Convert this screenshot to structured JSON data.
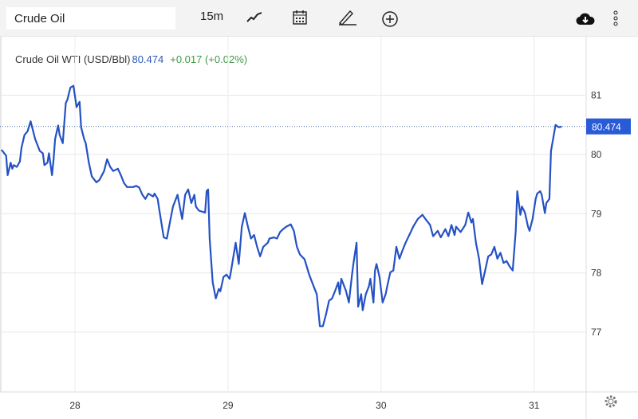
{
  "toolbar": {
    "symbol": "Crude Oil",
    "interval": "15m",
    "icons": [
      "line-chart-icon",
      "calendar-icon",
      "pencil-icon",
      "add-circle-icon",
      "cloud-download-icon",
      "more-vertical-icon"
    ]
  },
  "legend": {
    "name": "Crude Oil WTI (USD/Bbl)",
    "price": "80.474",
    "change": "+0.017 (+0.02%)"
  },
  "colors": {
    "line": "#2451c4",
    "label": "#2a5bd7",
    "up": "#3d9a45"
  },
  "chart_data": {
    "type": "line",
    "title": "Crude Oil WTI (USD/Bbl)",
    "xlabel": "",
    "ylabel": "",
    "x_ticks": [
      "28",
      "29",
      "30",
      "31"
    ],
    "x_tick_values": [
      28,
      29,
      30,
      31
    ],
    "y_ticks": [
      "77",
      "78",
      "79",
      "80",
      "81"
    ],
    "y_tick_values": [
      77,
      78,
      79,
      80,
      81
    ],
    "xlim": [
      27.51,
      31.34
    ],
    "ylim": [
      75.99,
      81.99
    ],
    "grid": true,
    "last_price_label": "80.474",
    "last_price": 80.474,
    "series": [
      {
        "name": "Crude Oil WTI",
        "x": [
          27.52,
          27.55,
          27.56,
          27.58,
          27.59,
          27.6,
          27.62,
          27.64,
          27.65,
          27.67,
          27.69,
          27.71,
          27.72,
          27.74,
          27.77,
          27.79,
          27.8,
          27.82,
          27.83,
          27.85,
          27.86,
          27.87,
          27.89,
          27.9,
          27.92,
          27.94,
          27.95,
          27.97,
          27.99,
          28.01,
          28.03,
          28.04,
          28.06,
          28.07,
          28.09,
          28.11,
          28.14,
          28.16,
          28.19,
          28.21,
          28.23,
          28.25,
          28.28,
          28.3,
          28.32,
          28.34,
          28.38,
          28.4,
          28.42,
          28.44,
          28.46,
          28.48,
          28.51,
          28.52,
          28.54,
          28.55,
          28.58,
          28.6,
          28.62,
          28.64,
          28.67,
          28.7,
          28.72,
          28.74,
          28.76,
          28.78,
          28.79,
          28.81,
          28.85,
          28.86,
          28.87,
          28.88,
          28.9,
          28.92,
          28.94,
          28.95,
          28.97,
          28.99,
          29.01,
          29.02,
          29.05,
          29.07,
          29.09,
          29.11,
          29.13,
          29.15,
          29.17,
          29.19,
          29.21,
          29.23,
          29.26,
          29.27,
          29.3,
          29.32,
          29.34,
          29.36,
          29.38,
          29.41,
          29.43,
          29.45,
          29.47,
          29.5,
          29.53,
          29.56,
          29.58,
          29.6,
          29.62,
          29.64,
          29.66,
          29.68,
          29.7,
          29.72,
          29.73,
          29.74,
          29.77,
          29.79,
          29.81,
          29.82,
          29.84,
          29.85,
          29.87,
          29.88,
          29.9,
          29.92,
          29.93,
          29.95,
          29.96,
          29.97,
          29.99,
          30.01,
          30.03,
          30.04,
          30.06,
          30.08,
          30.1,
          30.12,
          30.14,
          30.16,
          30.19,
          30.21,
          30.24,
          30.27,
          30.29,
          30.32,
          30.34,
          30.37,
          30.39,
          30.42,
          30.44,
          30.46,
          30.48,
          30.49,
          30.52,
          30.55,
          30.57,
          30.59,
          30.6,
          30.62,
          30.64,
          30.66,
          30.68,
          30.7,
          30.72,
          30.74,
          30.76,
          30.78,
          30.8,
          30.82,
          30.84,
          30.86,
          30.88,
          30.89,
          30.91,
          30.92,
          30.94,
          30.96,
          30.97,
          30.99,
          31.01,
          31.02,
          31.04,
          31.05,
          31.07,
          31.08,
          31.1,
          31.11,
          31.13,
          31.14,
          31.16,
          31.18
        ],
        "y": [
          80.08,
          79.98,
          79.65,
          79.86,
          79.76,
          79.82,
          79.79,
          79.88,
          80.11,
          80.33,
          80.39,
          80.56,
          80.46,
          80.26,
          80.06,
          80.02,
          79.82,
          79.86,
          80.02,
          79.65,
          79.92,
          80.26,
          80.49,
          80.33,
          80.19,
          80.87,
          80.92,
          81.13,
          81.16,
          80.8,
          80.89,
          80.46,
          80.26,
          80.19,
          79.87,
          79.63,
          79.53,
          79.57,
          79.72,
          79.92,
          79.79,
          79.72,
          79.76,
          79.65,
          79.52,
          79.45,
          79.45,
          79.47,
          79.44,
          79.32,
          79.25,
          79.34,
          79.29,
          79.34,
          79.25,
          79.08,
          78.6,
          78.58,
          78.85,
          79.12,
          79.32,
          78.91,
          79.32,
          79.41,
          79.18,
          79.32,
          79.12,
          79.05,
          79.02,
          79.38,
          79.41,
          78.58,
          77.84,
          77.57,
          77.73,
          77.69,
          77.93,
          77.97,
          77.9,
          78.04,
          78.51,
          78.15,
          78.78,
          79.01,
          78.78,
          78.58,
          78.64,
          78.44,
          78.28,
          78.44,
          78.51,
          78.58,
          78.6,
          78.58,
          78.69,
          78.74,
          78.78,
          78.82,
          78.71,
          78.44,
          78.31,
          78.23,
          77.97,
          77.77,
          77.64,
          77.1,
          77.1,
          77.3,
          77.53,
          77.57,
          77.7,
          77.84,
          77.64,
          77.9,
          77.7,
          77.5,
          77.97,
          78.17,
          78.51,
          77.43,
          77.64,
          77.37,
          77.64,
          77.77,
          77.9,
          77.5,
          78.04,
          78.15,
          77.93,
          77.5,
          77.64,
          77.77,
          78.01,
          78.04,
          78.44,
          78.24,
          78.38,
          78.51,
          78.67,
          78.78,
          78.91,
          78.98,
          78.91,
          78.81,
          78.62,
          78.71,
          78.6,
          78.74,
          78.62,
          78.81,
          78.64,
          78.78,
          78.69,
          78.81,
          79.02,
          78.85,
          78.91,
          78.51,
          78.24,
          77.81,
          78.04,
          78.28,
          78.31,
          78.44,
          78.24,
          78.34,
          78.17,
          78.2,
          78.11,
          78.04,
          78.71,
          79.38,
          78.98,
          79.12,
          79.02,
          78.78,
          78.71,
          78.91,
          79.25,
          79.34,
          79.38,
          79.32,
          79.01,
          79.18,
          79.25,
          80.06,
          80.35,
          80.5,
          80.46,
          80.47
        ]
      }
    ]
  }
}
